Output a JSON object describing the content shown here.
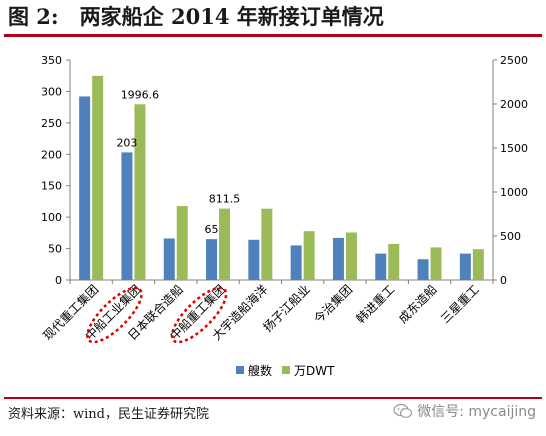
{
  "header": {
    "title": "图 2:　两家船企 2014 年新接订单情况"
  },
  "footer": {
    "source": "资料来源：wind，民生证券研究院",
    "watermark": "微信号: mycaijing"
  },
  "colors": {
    "series_ships": "#4f81bd",
    "series_dwt": "#9bbb59",
    "rule": "#b00019",
    "highlight": "#e00000"
  },
  "chart_data": {
    "type": "bar",
    "categories": [
      "现代重工集团",
      "中船工业集团",
      "日本联合造船",
      "中船重工集团",
      "大宇造船海洋",
      "扬子江船业",
      "今治集团",
      "韩进重工",
      "成东造船",
      "三星重工"
    ],
    "highlighted_categories": [
      "中船工业集团",
      "中船重工集团"
    ],
    "series": [
      {
        "name": "艘数",
        "axis": "left",
        "values": [
          292,
          203,
          66,
          65,
          64,
          55,
          67,
          42,
          33,
          42
        ]
      },
      {
        "name": "万DWT",
        "axis": "right",
        "values": [
          2320,
          1996.6,
          840,
          811.5,
          810,
          555,
          540,
          410,
          370,
          350
        ]
      }
    ],
    "data_labels": [
      {
        "series": 0,
        "index": 1,
        "text": "203"
      },
      {
        "series": 1,
        "index": 1,
        "text": "1996.6"
      },
      {
        "series": 0,
        "index": 3,
        "text": "65"
      },
      {
        "series": 1,
        "index": 3,
        "text": "811.5"
      }
    ],
    "y_left": {
      "min": 0,
      "max": 350,
      "ticks": [
        0,
        50,
        100,
        150,
        200,
        250,
        300,
        350
      ]
    },
    "y_right": {
      "min": 0,
      "max": 2500,
      "ticks": [
        0,
        500,
        1000,
        1500,
        2000,
        2500
      ]
    },
    "legend_position": "bottom",
    "grid": false
  }
}
